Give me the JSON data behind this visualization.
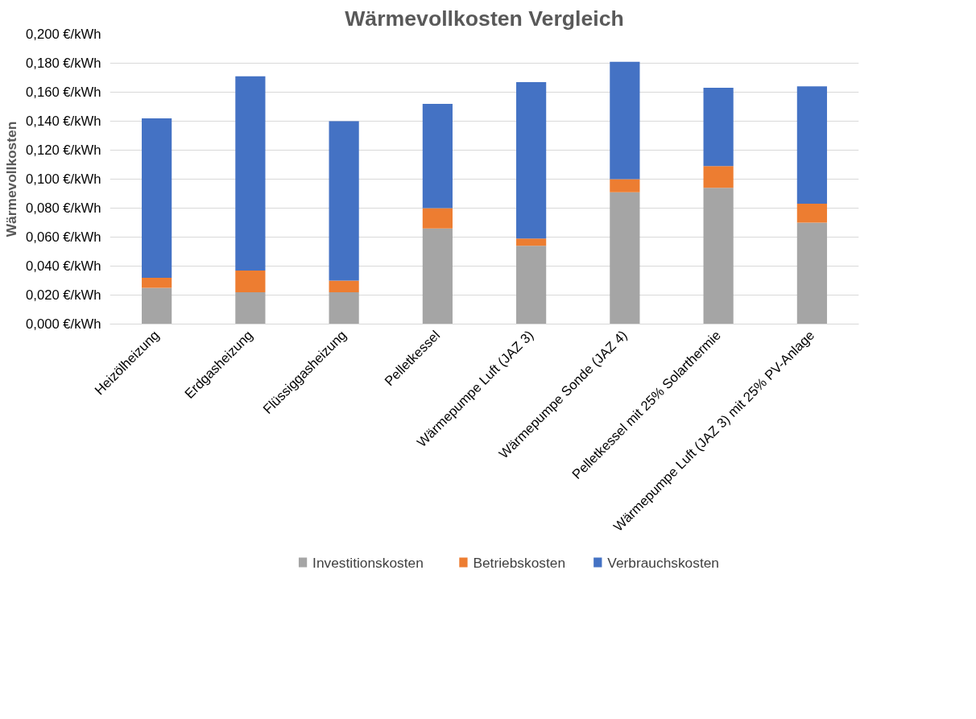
{
  "chart_data": {
    "type": "bar",
    "title": "Wärmevollkosten Vergleich",
    "ylabel": "Wärmevollkosten",
    "stacked": true,
    "grid": "y",
    "legend": "bottom",
    "categories": [
      "Heizölheizung",
      "Erdgasheizung",
      "Flüssiggasheizung",
      "Pelletkessel",
      "Wärmepumpe Luft (JAZ 3)",
      "Wärmepumpe Sonde (JAZ 4)",
      "Pelletkessel mit 25% Solarthermie",
      "Wärmepumpe Luft (JAZ 3) mit 25% PV-Anlage"
    ],
    "series": [
      {
        "name": "Investitionskosten",
        "color": "#a5a5a5",
        "values": [
          0.025,
          0.022,
          0.022,
          0.066,
          0.054,
          0.091,
          0.094,
          0.07
        ]
      },
      {
        "name": "Betriebskosten",
        "color": "#ed7d31",
        "values": [
          0.007,
          0.015,
          0.008,
          0.014,
          0.005,
          0.009,
          0.015,
          0.013
        ]
      },
      {
        "name": "Verbrauchskosten",
        "color": "#4472c4",
        "values": [
          0.11,
          0.134,
          0.11,
          0.072,
          0.108,
          0.081,
          0.054,
          0.081
        ]
      }
    ],
    "ylim": [
      0,
      0.2
    ],
    "yticks": [
      {
        "value": 0,
        "label": "0,000 €/kWh"
      },
      {
        "value": 0.02,
        "label": "0,020 €/kWh"
      },
      {
        "value": 0.04,
        "label": "0,040 €/kWh"
      },
      {
        "value": 0.06,
        "label": "0,060 €/kWh"
      },
      {
        "value": 0.08,
        "label": "0,080 €/kWh"
      },
      {
        "value": 0.1,
        "label": "0,100 €/kWh"
      },
      {
        "value": 0.12,
        "label": "0,120 €/kWh"
      },
      {
        "value": 0.14,
        "label": "0,140 €/kWh"
      },
      {
        "value": 0.16,
        "label": "0,160 €/kWh"
      },
      {
        "value": 0.18,
        "label": "0,180 €/kWh"
      },
      {
        "value": 0.2,
        "label": "0,200 €/kWh"
      }
    ]
  }
}
